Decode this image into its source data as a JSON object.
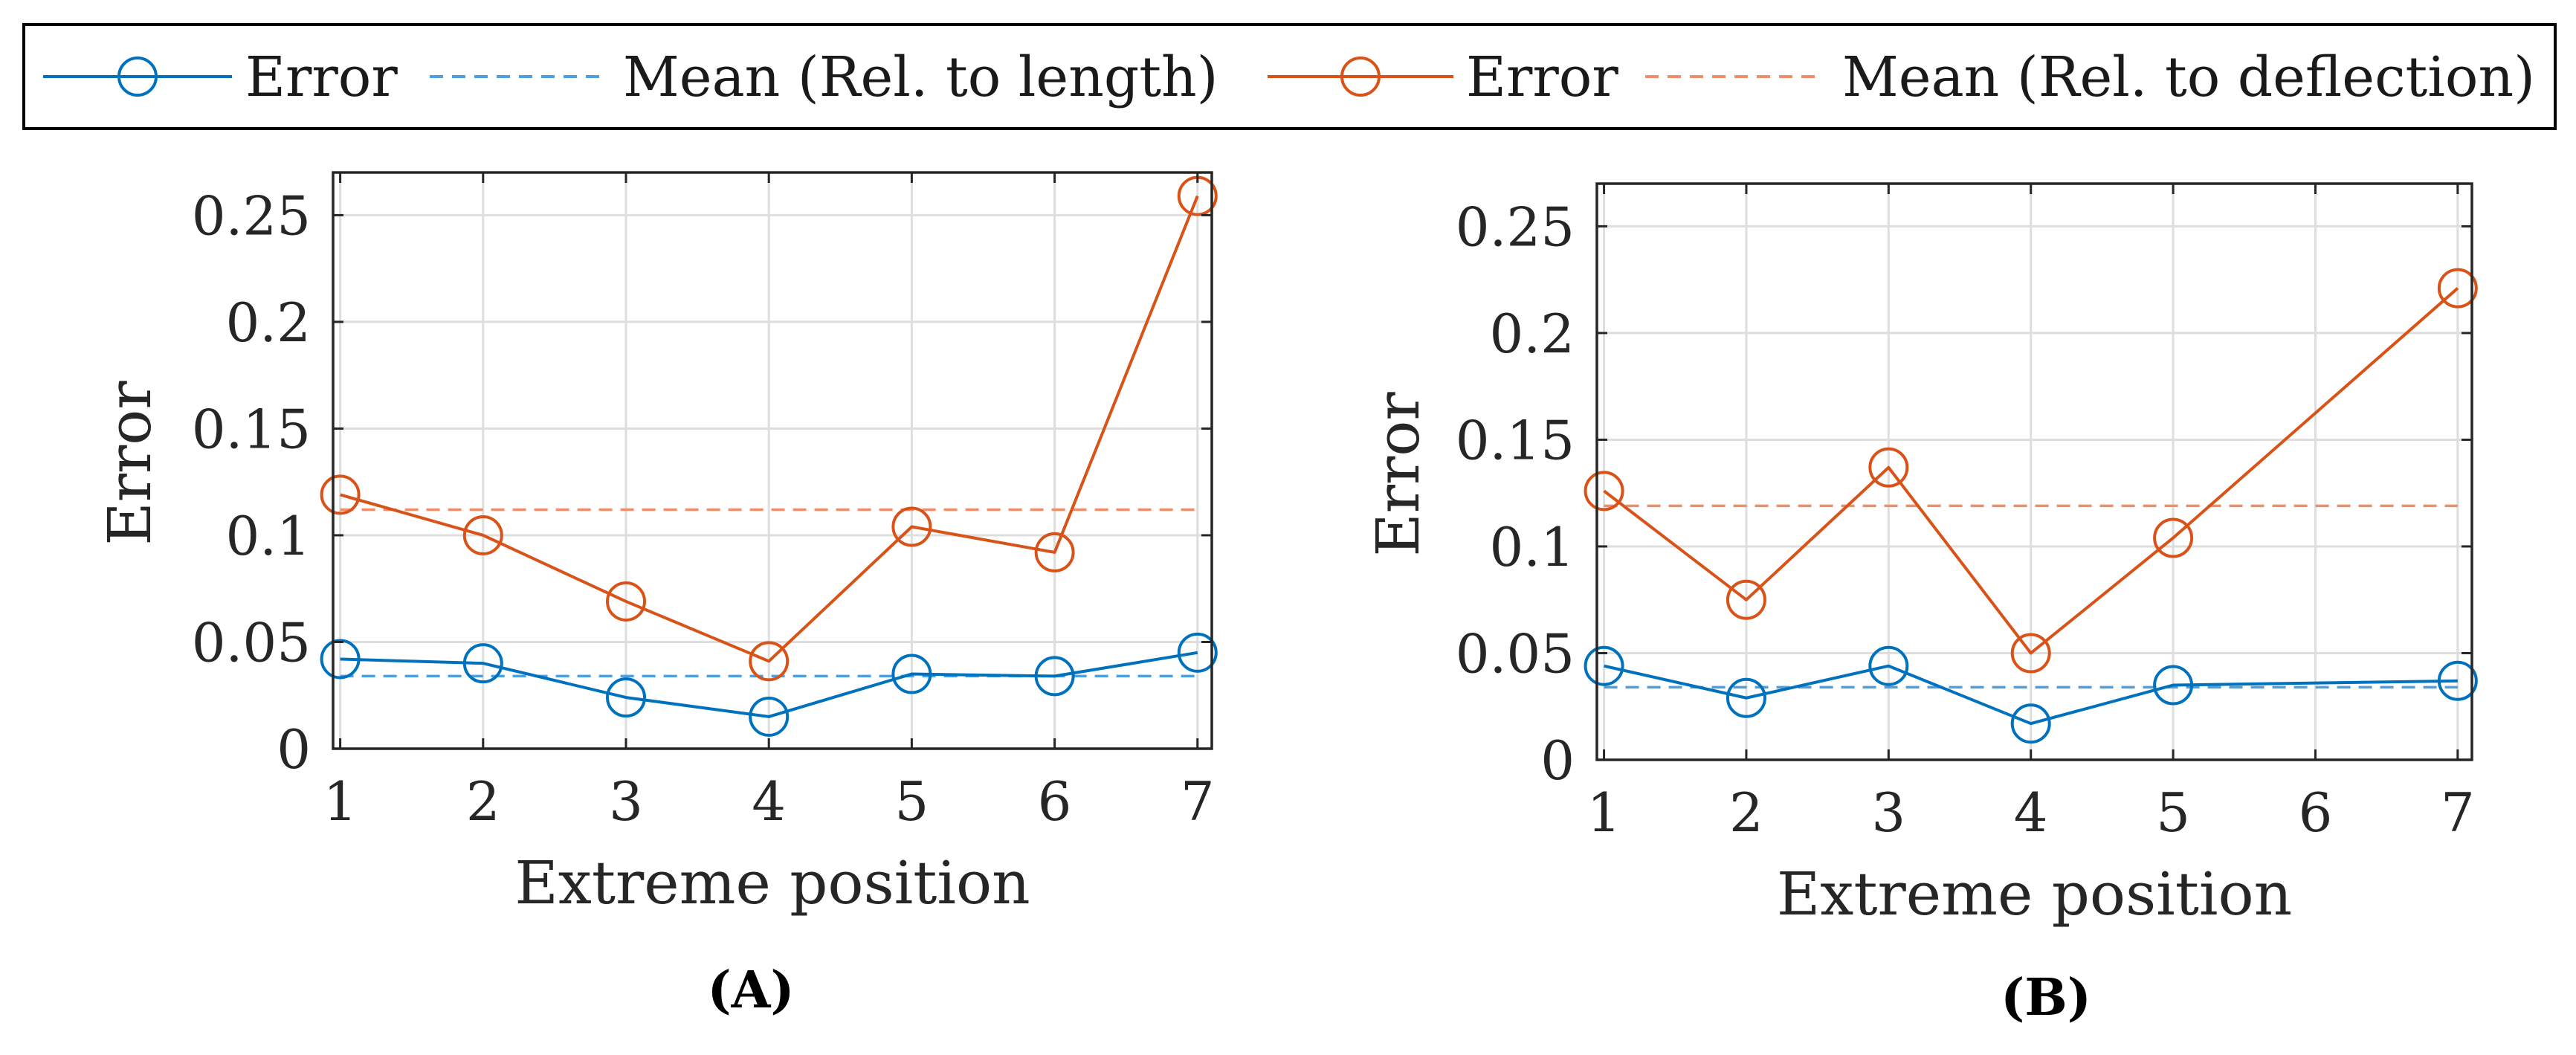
{
  "legend": {
    "entries": [
      {
        "label": "Error",
        "style": "marker-line",
        "color": "#0072BD"
      },
      {
        "label": "Mean (Rel. to length)",
        "style": "dashed",
        "color": "#4D9FE0"
      },
      {
        "label": "Error",
        "style": "marker-line",
        "color": "#D95319"
      },
      {
        "label": "Mean (Rel. to deflection)",
        "style": "dashed",
        "color": "#EE8E6B"
      }
    ]
  },
  "colors": {
    "blue": "#0072BD",
    "blue_mean": "#4D9FE0",
    "orange": "#D95319",
    "orange_mean": "#EE8E6B",
    "grid": "#dedede",
    "axis": "#262626"
  },
  "chart_data": [
    {
      "type": "line",
      "panel": "(A)",
      "xlabel": "Extreme position",
      "ylabel": "Error",
      "x": [
        1,
        2,
        3,
        4,
        5,
        6,
        7
      ],
      "xlim": [
        0.95,
        7.1
      ],
      "ylim": [
        0,
        0.27
      ],
      "xticks": [
        1,
        2,
        3,
        4,
        5,
        6,
        7
      ],
      "yticks": [
        0,
        0.05,
        0.1,
        0.15,
        0.2,
        0.25
      ],
      "ytick_labels": [
        "0",
        "0.05",
        "0.1",
        "0.15",
        "0.2",
        "0.25"
      ],
      "grid": true,
      "series": [
        {
          "name": "Error (Rel. to length)",
          "color_key": "blue",
          "marker": "circle",
          "values": [
            0.042,
            0.04,
            0.024,
            0.015,
            0.035,
            0.034,
            0.045
          ]
        },
        {
          "name": "Error (Rel. to deflection)",
          "color_key": "orange",
          "marker": "circle",
          "values": [
            0.119,
            0.1,
            0.069,
            0.041,
            0.104,
            0.092,
            0.259
          ]
        }
      ],
      "means": [
        {
          "name": "Mean (Rel. to length)",
          "color_key": "blue_mean",
          "value": 0.034
        },
        {
          "name": "Mean (Rel. to deflection)",
          "color_key": "orange_mean",
          "value": 0.112
        }
      ]
    },
    {
      "type": "line",
      "panel": "(B)",
      "xlabel": "Extreme position",
      "ylabel": "Error",
      "x": [
        1,
        2,
        3,
        4,
        5,
        6,
        7
      ],
      "xlim": [
        0.95,
        7.1
      ],
      "ylim": [
        0,
        0.27
      ],
      "xticks": [
        1,
        2,
        3,
        4,
        5,
        6,
        7
      ],
      "yticks": [
        0,
        0.05,
        0.1,
        0.15,
        0.2,
        0.25
      ],
      "ytick_labels": [
        "0",
        "0.05",
        "0.1",
        "0.15",
        "0.2",
        "0.25"
      ],
      "grid": true,
      "series": [
        {
          "name": "Error (Rel. to length)",
          "color_key": "blue",
          "marker": "circle",
          "values": [
            0.044,
            0.029,
            0.044,
            0.017,
            0.035,
            null,
            0.037
          ]
        },
        {
          "name": "Error (Rel. to deflection)",
          "color_key": "orange",
          "marker": "circle",
          "values": [
            0.126,
            0.075,
            0.137,
            0.05,
            0.104,
            null,
            0.221
          ]
        }
      ],
      "means": [
        {
          "name": "Mean (Rel. to length)",
          "color_key": "blue_mean",
          "value": 0.034
        },
        {
          "name": "Mean (Rel. to deflection)",
          "color_key": "orange_mean",
          "value": 0.119
        }
      ]
    }
  ]
}
